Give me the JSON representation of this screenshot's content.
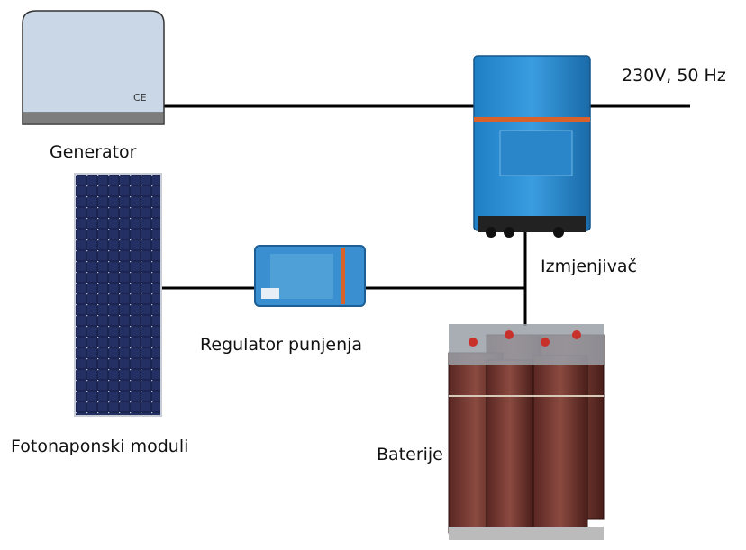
{
  "nodes": [
    {
      "label": "Generator",
      "mark": "CE"
    },
    {
      "label": "Fotonaponski moduli"
    },
    {
      "label": "Regulator punjenja"
    },
    {
      "label": "Izmjenjivač"
    },
    {
      "label": "Baterije"
    }
  ],
  "output": {
    "label": "230V, 50 Hz"
  }
}
